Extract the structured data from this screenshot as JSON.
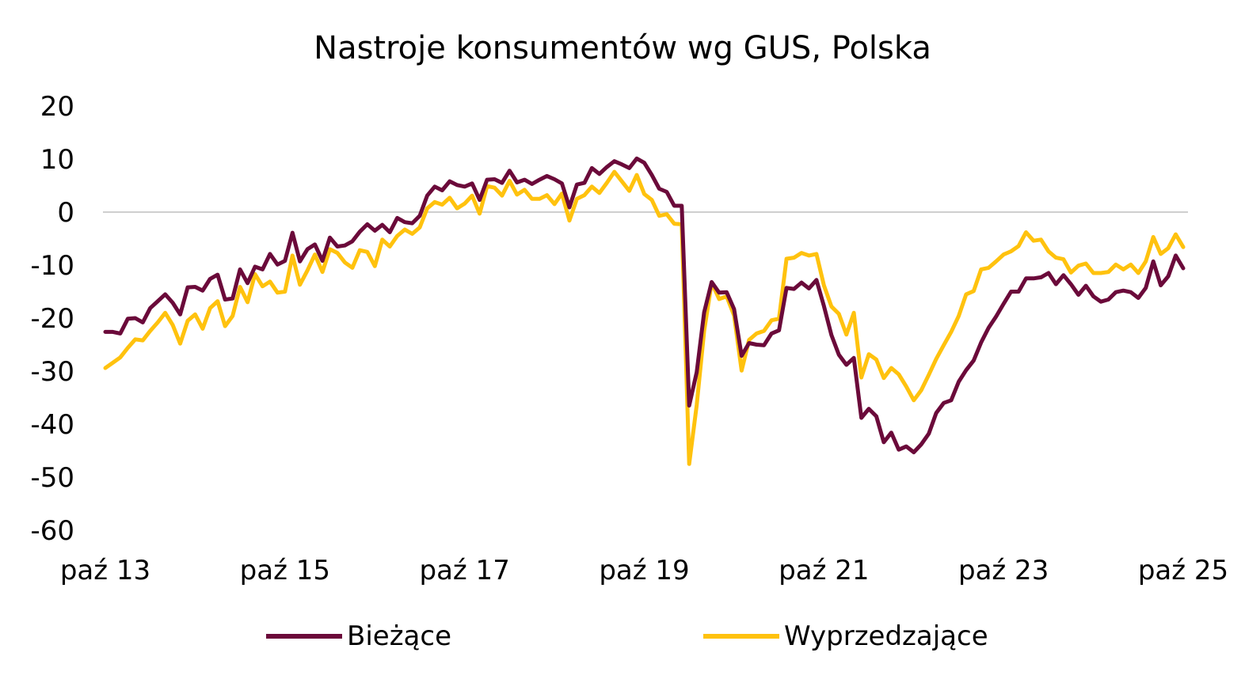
{
  "chart_data": {
    "type": "line",
    "title": "Nastroje konsumentów wg GUS, Polska",
    "xlabel": "",
    "ylabel": "",
    "ylim": [
      -60,
      20
    ],
    "yticks": [
      20,
      10,
      0,
      -10,
      -20,
      -30,
      -40,
      -50,
      -60
    ],
    "xtick_labels": [
      "paź 13",
      "paź 15",
      "paź 17",
      "paź 19",
      "paź 21",
      "paź 23",
      "paź 25"
    ],
    "x_start": "2013-10",
    "x_end": "2025-10",
    "zero_line": true,
    "grid": false,
    "legend_position": "bottom",
    "series": [
      {
        "name": "Bieżące",
        "color": "#6b0a3a",
        "values": [
          -22.6,
          -22.6,
          -22.9,
          -20.1,
          -20,
          -20.8,
          -18.1,
          -16.8,
          -15.5,
          -17.1,
          -19.3,
          -14.2,
          -14.1,
          -14.8,
          -12.6,
          -11.8,
          -16.5,
          -16.3,
          -10.8,
          -13.4,
          -10.3,
          -10.8,
          -7.9,
          -9.9,
          -9.2,
          -3.9,
          -9.3,
          -7,
          -6.1,
          -9.2,
          -4.8,
          -6.5,
          -6.3,
          -5.5,
          -3.7,
          -2.3,
          -3.5,
          -2.4,
          -3.8,
          -1.1,
          -1.9,
          -2.1,
          -0.7,
          3.1,
          4.8,
          4.1,
          5.8,
          5.1,
          4.8,
          5.4,
          2.3,
          6.1,
          6.2,
          5.5,
          7.8,
          5.6,
          6.1,
          5.3,
          6.1,
          6.8,
          6.2,
          5.4,
          0.9,
          5.2,
          5.5,
          8.3,
          7.2,
          8.5,
          9.6,
          9,
          8.3,
          10.1,
          9.3,
          7,
          4.4,
          3.8,
          1.2,
          1.2,
          -36.5,
          -30.2,
          -18.9,
          -13.2,
          -15.2,
          -15.1,
          -18.3,
          -27.1,
          -24.7,
          -25,
          -25.1,
          -22.9,
          -22.3,
          -14.3,
          -14.5,
          -13.3,
          -14.4,
          -12.8,
          -17.7,
          -23.2,
          -26.9,
          -28.8,
          -27.5,
          -38.8,
          -37.1,
          -38.5,
          -43.4,
          -41.6,
          -44.8,
          -44.2,
          -45.3,
          -43.8,
          -41.8,
          -37.9,
          -36,
          -35.5,
          -32,
          -29.8,
          -28,
          -24.6,
          -21.8,
          -19.7,
          -17.3,
          -15,
          -15,
          -12.5,
          -12.5,
          -12.3,
          -11.5,
          -13.6,
          -11.9,
          -13.6,
          -15.6,
          -13.9,
          -15.9,
          -16.9,
          -16.5,
          -15.1,
          -14.8,
          -15.1,
          -16.2,
          -14.3,
          -9.3,
          -13.8,
          -12.1,
          -8.2,
          -10.6
        ],
        "values_note": ""
      },
      {
        "name": "Wyprzedzające",
        "color": "#ffc20e",
        "values": [
          -29.4,
          -28.4,
          -27.4,
          -25.6,
          -24,
          -24.2,
          -22.4,
          -20.8,
          -19,
          -21.3,
          -24.8,
          -20.5,
          -19.3,
          -22,
          -18.1,
          -16.8,
          -21.5,
          -19.6,
          -14.1,
          -17,
          -11.7,
          -14,
          -13.1,
          -15.2,
          -15,
          -8.2,
          -13.7,
          -11,
          -8,
          -11.3,
          -7,
          -7.7,
          -9.5,
          -10.5,
          -7.2,
          -7.5,
          -10.2,
          -5.2,
          -6.5,
          -4.5,
          -3.3,
          -4.1,
          -2.9,
          0.7,
          1.9,
          1.4,
          2.7,
          0.7,
          1.6,
          3.1,
          -0.3,
          4.9,
          4.6,
          3.1,
          5.9,
          3.3,
          4.2,
          2.5,
          2.5,
          3.2,
          1.5,
          3.5,
          -1.6,
          2.5,
          3.2,
          4.8,
          3.6,
          5.5,
          7.6,
          5.8,
          4,
          7,
          3.4,
          2.3,
          -0.7,
          -0.4,
          -2.2,
          -2.3,
          -47.5,
          -36.4,
          -22.4,
          -13.3,
          -16.4,
          -15.9,
          -19.5,
          -29.9,
          -24.1,
          -22.9,
          -22.4,
          -20.4,
          -20.1,
          -8.8,
          -8.6,
          -7.7,
          -8.2,
          -7.9,
          -13.8,
          -17.8,
          -19.2,
          -23.1,
          -19,
          -31.2,
          -26.8,
          -27.8,
          -31.3,
          -29.4,
          -30.6,
          -32.9,
          -35.5,
          -33.6,
          -30.7,
          -27.7,
          -25.1,
          -22.6,
          -19.6,
          -15.5,
          -14.9,
          -10.8,
          -10.5,
          -9.3,
          -8,
          -7.4,
          -6.4,
          -3.8,
          -5.4,
          -5.2,
          -7.4,
          -8.6,
          -8.9,
          -11.4,
          -10.1,
          -9.7,
          -11.5,
          -11.5,
          -11.3,
          -9.9,
          -10.8,
          -9.9,
          -11.5,
          -9.3,
          -4.7,
          -7.9,
          -6.8,
          -4.2,
          -6.6
        ],
        "values_note": ""
      }
    ]
  },
  "colors": {
    "zero_line": "#bfbfbf",
    "text": "#000000"
  }
}
